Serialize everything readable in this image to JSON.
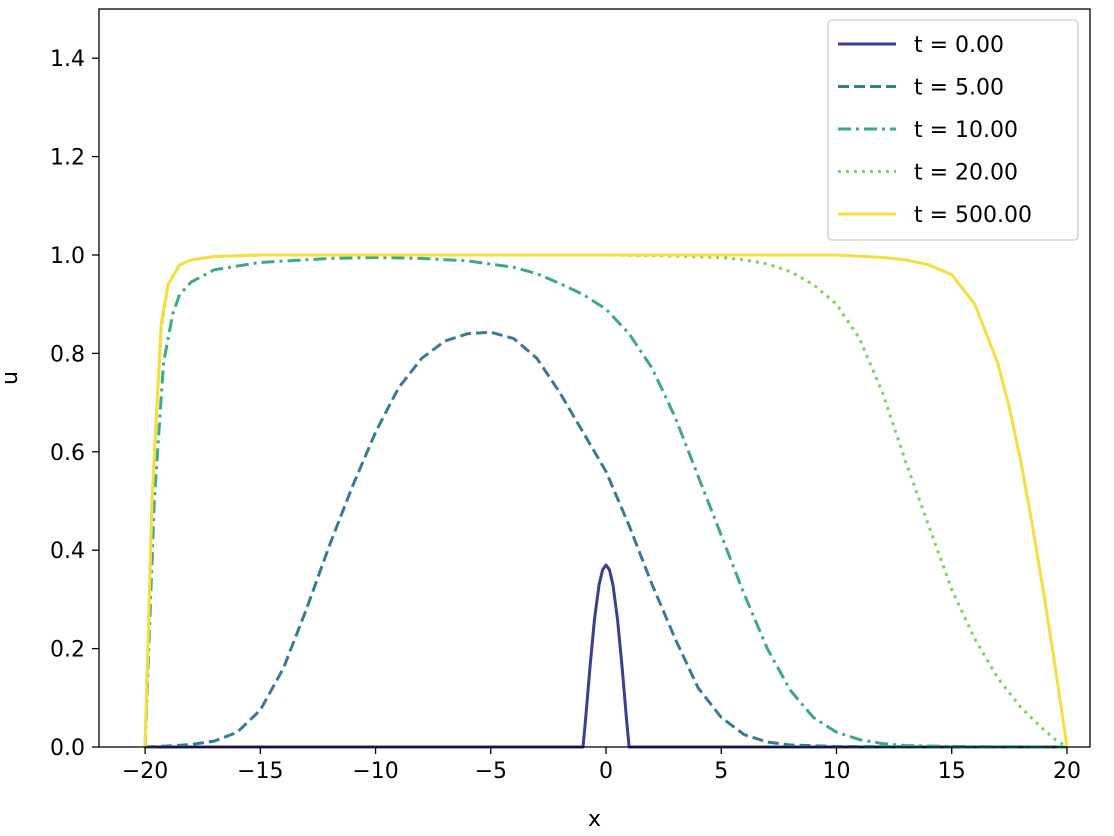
{
  "chart_data": {
    "type": "line",
    "title": "",
    "xlabel": "x",
    "ylabel": "u",
    "xlim": [
      -22,
      21
    ],
    "ylim": [
      0,
      1.5
    ],
    "xticks": [
      -20,
      -15,
      -10,
      -5,
      0,
      5,
      10,
      15,
      20
    ],
    "xtick_labels": [
      "−20",
      "−15",
      "−10",
      "−5",
      "0",
      "5",
      "10",
      "15",
      "20"
    ],
    "yticks": [
      0.0,
      0.2,
      0.4,
      0.6,
      0.8,
      1.0,
      1.2,
      1.4
    ],
    "ytick_labels": [
      "0.0",
      "0.2",
      "0.4",
      "0.6",
      "0.8",
      "1.0",
      "1.2",
      "1.4"
    ],
    "grid": false,
    "legend_position": "top-right",
    "series": [
      {
        "name": "t = 0.00",
        "color": "#3b3f8c",
        "dash": "solid",
        "points": [
          [
            -20,
            0
          ],
          [
            -1,
            0
          ],
          [
            -0.9,
            0.05
          ],
          [
            -0.7,
            0.16
          ],
          [
            -0.5,
            0.26
          ],
          [
            -0.3,
            0.33
          ],
          [
            -0.15,
            0.36
          ],
          [
            0,
            0.37
          ],
          [
            0.15,
            0.36
          ],
          [
            0.3,
            0.33
          ],
          [
            0.5,
            0.26
          ],
          [
            0.7,
            0.16
          ],
          [
            0.9,
            0.05
          ],
          [
            1,
            0
          ],
          [
            20,
            0
          ]
        ]
      },
      {
        "name": "t = 5.00",
        "color": "#3a7a94",
        "dash": "dashed",
        "points": [
          [
            -20,
            0
          ],
          [
            -19,
            0.002
          ],
          [
            -18,
            0.005
          ],
          [
            -17,
            0.012
          ],
          [
            -16,
            0.03
          ],
          [
            -15,
            0.075
          ],
          [
            -14,
            0.16
          ],
          [
            -13,
            0.28
          ],
          [
            -12,
            0.41
          ],
          [
            -11,
            0.53
          ],
          [
            -10,
            0.64
          ],
          [
            -9,
            0.73
          ],
          [
            -8,
            0.79
          ],
          [
            -7,
            0.825
          ],
          [
            -6,
            0.84
          ],
          [
            -5,
            0.843
          ],
          [
            -4,
            0.83
          ],
          [
            -3,
            0.79
          ],
          [
            -2,
            0.72
          ],
          [
            -1,
            0.64
          ],
          [
            0,
            0.56
          ],
          [
            1,
            0.45
          ],
          [
            2,
            0.33
          ],
          [
            3,
            0.22
          ],
          [
            4,
            0.12
          ],
          [
            5,
            0.06
          ],
          [
            6,
            0.025
          ],
          [
            7,
            0.01
          ],
          [
            8,
            0.004
          ],
          [
            10,
            0.001
          ],
          [
            15,
            0.0
          ],
          [
            20,
            0
          ]
        ]
      },
      {
        "name": "t = 10.00",
        "color": "#3fa884",
        "dash": "dashdot",
        "points": [
          [
            -20,
            0
          ],
          [
            -19.6,
            0.5
          ],
          [
            -19.2,
            0.78
          ],
          [
            -18.8,
            0.88
          ],
          [
            -18.5,
            0.92
          ],
          [
            -18,
            0.945
          ],
          [
            -17,
            0.97
          ],
          [
            -15,
            0.985
          ],
          [
            -12,
            0.993
          ],
          [
            -10,
            0.995
          ],
          [
            -8,
            0.993
          ],
          [
            -6,
            0.988
          ],
          [
            -4,
            0.975
          ],
          [
            -3,
            0.962
          ],
          [
            -2,
            0.942
          ],
          [
            -1,
            0.92
          ],
          [
            0,
            0.89
          ],
          [
            1,
            0.84
          ],
          [
            2,
            0.77
          ],
          [
            3,
            0.67
          ],
          [
            4,
            0.55
          ],
          [
            5,
            0.43
          ],
          [
            6,
            0.31
          ],
          [
            7,
            0.2
          ],
          [
            8,
            0.115
          ],
          [
            9,
            0.06
          ],
          [
            10,
            0.03
          ],
          [
            11,
            0.015
          ],
          [
            12,
            0.007
          ],
          [
            13,
            0.003
          ],
          [
            15,
            0.001
          ],
          [
            20,
            0
          ]
        ]
      },
      {
        "name": "t = 20.00",
        "color": "#7fd157",
        "dash": "dotted",
        "points": [
          [
            -20,
            0
          ],
          [
            -19.7,
            0.5
          ],
          [
            -19.3,
            0.85
          ],
          [
            -19,
            0.94
          ],
          [
            -18.5,
            0.98
          ],
          [
            -18,
            0.99
          ],
          [
            -17,
            0.997
          ],
          [
            -15,
            1.0
          ],
          [
            0,
            1.0
          ],
          [
            3,
            0.998
          ],
          [
            5,
            0.995
          ],
          [
            6,
            0.99
          ],
          [
            7,
            0.982
          ],
          [
            8,
            0.966
          ],
          [
            9,
            0.94
          ],
          [
            10,
            0.9
          ],
          [
            11,
            0.83
          ],
          [
            12,
            0.72
          ],
          [
            13,
            0.58
          ],
          [
            14,
            0.45
          ],
          [
            15,
            0.32
          ],
          [
            16,
            0.22
          ],
          [
            17,
            0.14
          ],
          [
            18,
            0.08
          ],
          [
            19,
            0.035
          ],
          [
            19.5,
            0.015
          ],
          [
            20,
            0
          ]
        ]
      },
      {
        "name": "t = 500.00",
        "color": "#f5de3f",
        "dash": "solid",
        "points": [
          [
            -20,
            0
          ],
          [
            -19.7,
            0.5
          ],
          [
            -19.3,
            0.86
          ],
          [
            -19,
            0.94
          ],
          [
            -18.5,
            0.98
          ],
          [
            -18,
            0.99
          ],
          [
            -17,
            0.997
          ],
          [
            -15,
            1.0
          ],
          [
            10,
            1.0
          ],
          [
            12,
            0.995
          ],
          [
            13,
            0.99
          ],
          [
            14,
            0.98
          ],
          [
            15,
            0.96
          ],
          [
            16,
            0.9
          ],
          [
            17,
            0.78
          ],
          [
            17.5,
            0.69
          ],
          [
            18,
            0.58
          ],
          [
            18.5,
            0.45
          ],
          [
            19,
            0.31
          ],
          [
            19.5,
            0.16
          ],
          [
            20,
            0
          ]
        ]
      }
    ]
  }
}
